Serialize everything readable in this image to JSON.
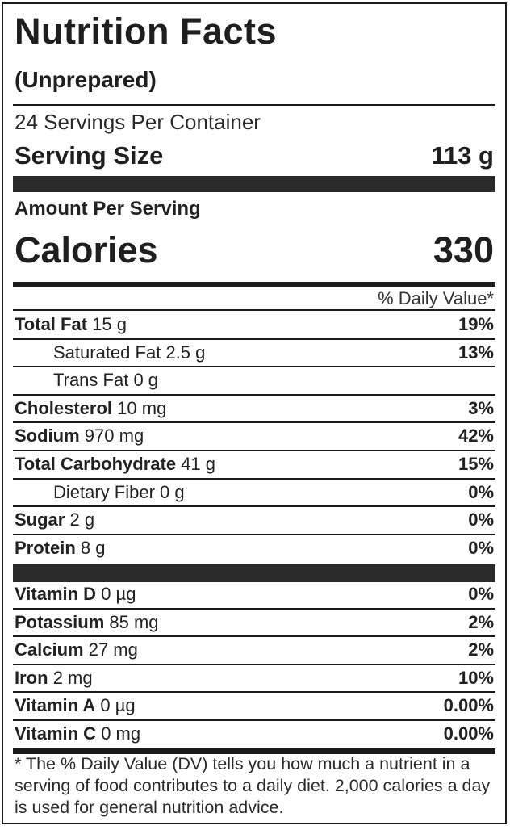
{
  "header": {
    "title": "Nutrition Facts",
    "subtitle": "(Unprepared)",
    "servings_per_container": "24 Servings Per Container",
    "serving_size_label": "Serving Size",
    "serving_size_value": "113 g"
  },
  "calories": {
    "amount_per_serving_label": "Amount Per Serving",
    "label": "Calories",
    "value": "330"
  },
  "daily_value_header": "% Daily Value*",
  "nutrients": [
    {
      "name": "Total Fat",
      "amount": "15 g",
      "dv": "19%",
      "indent": false
    },
    {
      "name": "Saturated Fat",
      "amount": "2.5 g",
      "dv": "13%",
      "indent": true
    },
    {
      "name": "Trans Fat",
      "amount": "0 g",
      "dv": "",
      "indent": true
    },
    {
      "name": "Cholesterol",
      "amount": "10 mg",
      "dv": "3%",
      "indent": false
    },
    {
      "name": "Sodium",
      "amount": "970 mg",
      "dv": "42%",
      "indent": false
    },
    {
      "name": "Total Carbohydrate",
      "amount": "41 g",
      "dv": "15%",
      "indent": false
    },
    {
      "name": "Dietary Fiber",
      "amount": "0 g",
      "dv": "0%",
      "indent": true
    },
    {
      "name": "Sugar",
      "amount": "2 g",
      "dv": "0%",
      "indent": false
    },
    {
      "name": "Protein",
      "amount": "8 g",
      "dv": "0%",
      "indent": false
    }
  ],
  "vitamins": [
    {
      "name": "Vitamin D",
      "amount": "0 µg",
      "dv": "0%"
    },
    {
      "name": "Potassium",
      "amount": "85 mg",
      "dv": "2%"
    },
    {
      "name": "Calcium",
      "amount": "27 mg",
      "dv": "2%"
    },
    {
      "name": "Iron",
      "amount": "2 mg",
      "dv": "10%"
    },
    {
      "name": "Vitamin A",
      "amount": "0 µg",
      "dv": "0.00%"
    },
    {
      "name": "Vitamin C",
      "amount": "0 mg",
      "dv": "0.00%"
    }
  ],
  "footnote": "* The % Daily Value (DV) tells you how much a nutrient in a serving of food contributes to a daily diet. 2,000 calories a day is used for general nutrition advice."
}
